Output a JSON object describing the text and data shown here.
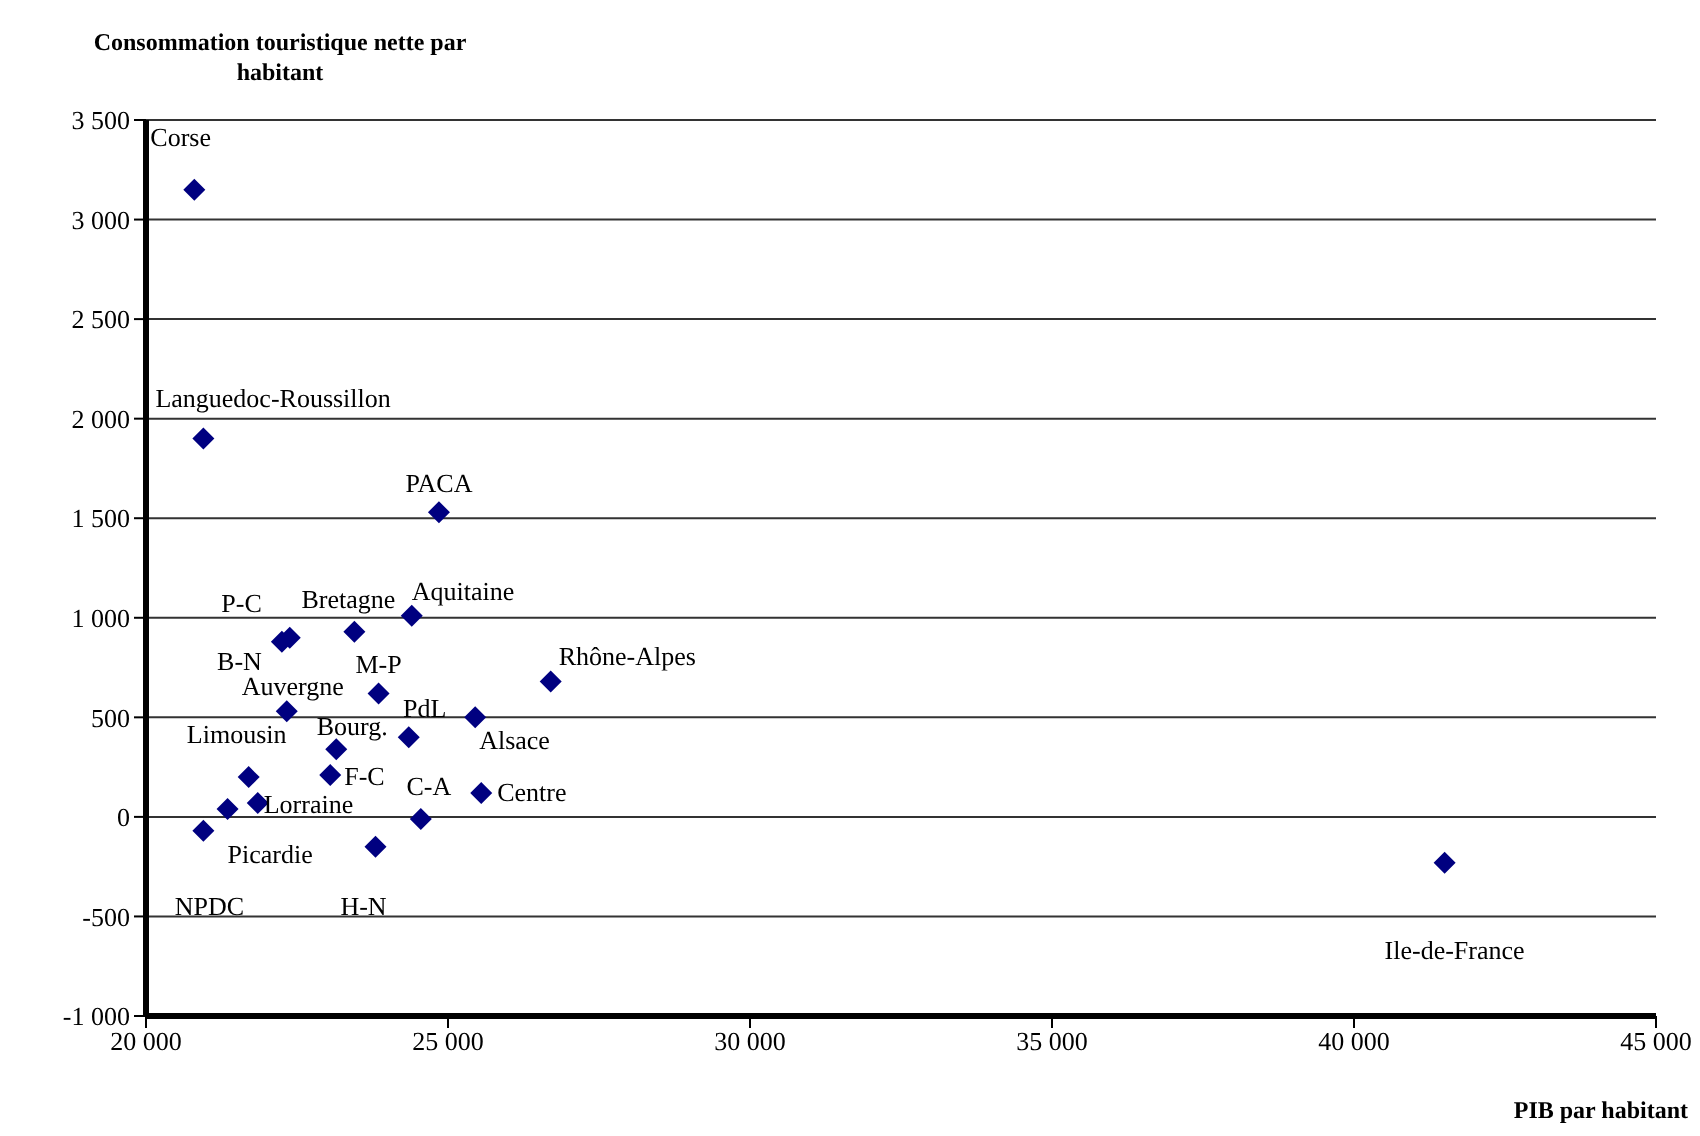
{
  "chart_data": {
    "type": "scatter",
    "ylabel": "Consommation touristique nette par habitant",
    "xlabel": "PIB par habitant",
    "xlim": [
      20000,
      45000
    ],
    "xticks": [
      {
        "value": 20000,
        "label": "20 000"
      },
      {
        "value": 25000,
        "label": "25 000"
      },
      {
        "value": 30000,
        "label": "30 000"
      },
      {
        "value": 35000,
        "label": "35 000"
      },
      {
        "value": 40000,
        "label": "40 000"
      },
      {
        "value": 45000,
        "label": "45 000"
      }
    ],
    "ylim": [
      -1000,
      3500
    ],
    "yticks": [
      {
        "value": -1000,
        "label": "-1 000"
      },
      -500,
      0,
      500,
      {
        "value": 1000,
        "label": "1 000"
      },
      {
        "value": 1500,
        "label": "1 500"
      },
      {
        "value": 2000,
        "label": "2 000"
      },
      {
        "value": 2500,
        "label": "2 500"
      },
      {
        "value": 3000,
        "label": "3 000"
      },
      {
        "value": 3500,
        "label": "3 500"
      }
    ],
    "grid": "y",
    "legend": false,
    "marker": "diamond",
    "series": [
      {
        "color": "#000080",
        "x": [
          20800,
          20950,
          24850,
          22380,
          22250,
          23450,
          24400,
          23850,
          26700,
          22330,
          24350,
          25450,
          23150,
          21700,
          23050,
          24550,
          25550,
          21850,
          21350,
          20950,
          23800,
          41500
        ],
        "values": [
          3150,
          1900,
          1530,
          900,
          880,
          930,
          1010,
          620,
          680,
          530,
          400,
          500,
          340,
          200,
          210,
          -10,
          120,
          70,
          40,
          -70,
          -150,
          -230
        ]
      }
    ],
    "annotations": [
      {
        "text": "Corse",
        "x": 20800,
        "y": 3150
      },
      {
        "text": "Languedoc-Roussillon",
        "x": 20950,
        "y": 1900
      },
      {
        "text": "PACA",
        "x": 24850,
        "y": 1530
      },
      {
        "text": "P-C",
        "x": 22380,
        "y": 900
      },
      {
        "text": "B-N",
        "x": 22250,
        "y": 880
      },
      {
        "text": "Bretagne",
        "x": 23450,
        "y": 930
      },
      {
        "text": "Aquitaine",
        "x": 24400,
        "y": 1010
      },
      {
        "text": "M-P",
        "x": 23850,
        "y": 620
      },
      {
        "text": "Rhône-Alpes",
        "x": 26700,
        "y": 680
      },
      {
        "text": "Auvergne",
        "x": 22330,
        "y": 530
      },
      {
        "text": "PdL",
        "x": 24350,
        "y": 400
      },
      {
        "text": "Alsace",
        "x": 25450,
        "y": 500
      },
      {
        "text": "Bourg.",
        "x": 23150,
        "y": 340
      },
      {
        "text": "Limousin",
        "x": 21700,
        "y": 200
      },
      {
        "text": "F-C",
        "x": 23050,
        "y": 210
      },
      {
        "text": "C-A",
        "x": 24550,
        "y": -10
      },
      {
        "text": "Centre",
        "x": 25550,
        "y": 120
      },
      {
        "text": "Lorraine",
        "x": 21850,
        "y": 70
      },
      {
        "text": "Picardie",
        "x": 21350,
        "y": 40
      },
      {
        "text": "NPDC",
        "x": 20950,
        "y": -70
      },
      {
        "text": "H-N",
        "x": 23800,
        "y": -150
      },
      {
        "text": "Ile-de-France",
        "x": 41500,
        "y": -230
      }
    ]
  }
}
